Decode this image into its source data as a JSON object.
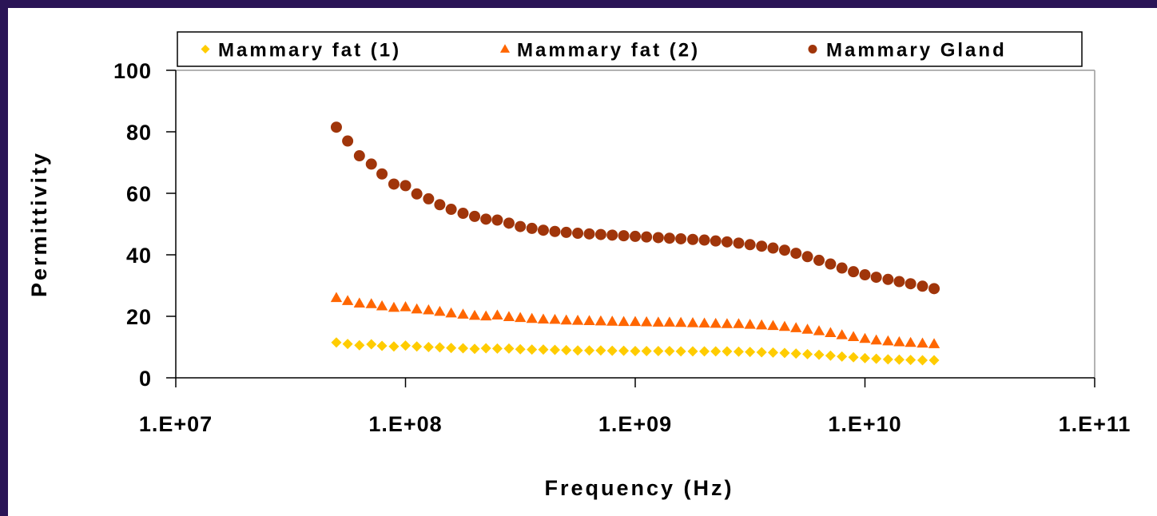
{
  "chart_data": {
    "type": "scatter",
    "xlabel": "Frequency (Hz)",
    "ylabel": "Permittivity",
    "x_scale": "log",
    "xlim": [
      10000000,
      100000000000
    ],
    "ylim": [
      0,
      100
    ],
    "x_ticks": [
      10000000,
      100000000,
      1000000000,
      10000000000,
      100000000000
    ],
    "x_tick_labels": [
      "1.E+07",
      "1.E+08",
      "1.E+09",
      "1.E+10",
      "1.E+11"
    ],
    "y_ticks": [
      0,
      20,
      40,
      60,
      80,
      100
    ],
    "y_tick_labels": [
      "0",
      "20",
      "40",
      "60",
      "80",
      "100"
    ],
    "grid": false,
    "legend": "top",
    "series": [
      {
        "name": "Mammary fat (1)",
        "marker": "diamond",
        "color": "#ffcc00",
        "x": [
          50000000.0,
          56000000.0,
          63000000.0,
          71000000.0,
          79000000.0,
          89000000.0,
          100000000.0,
          112000000.0,
          126000000.0,
          141000000.0,
          158000000.0,
          178000000.0,
          200000000.0,
          224000000.0,
          251000000.0,
          282000000.0,
          316000000.0,
          355000000.0,
          398000000.0,
          447000000.0,
          501000000.0,
          562000000.0,
          631000000.0,
          708000000.0,
          794000000.0,
          891000000.0,
          1000000000.0,
          1120000000.0,
          1260000000.0,
          1410000000.0,
          1580000000.0,
          1780000000.0,
          2000000000.0,
          2240000000.0,
          2510000000.0,
          2820000000.0,
          3160000000.0,
          3550000000.0,
          3980000000.0,
          4470000000.0,
          5010000000.0,
          5620000000.0,
          6310000000.0,
          7080000000.0,
          7940000000.0,
          8910000000.0,
          10000000000.0,
          11200000000.0,
          12600000000.0,
          14100000000.0,
          15800000000.0,
          17800000000.0,
          20000000000.0
        ],
        "y": [
          11.5,
          11.0,
          10.6,
          10.9,
          10.4,
          10.2,
          10.5,
          10.2,
          10.0,
          9.9,
          9.7,
          9.6,
          9.4,
          9.6,
          9.5,
          9.5,
          9.3,
          9.2,
          9.2,
          9.1,
          9.0,
          8.9,
          8.9,
          8.9,
          8.8,
          8.8,
          8.7,
          8.7,
          8.7,
          8.7,
          8.6,
          8.6,
          8.6,
          8.6,
          8.6,
          8.5,
          8.4,
          8.3,
          8.2,
          8.1,
          7.9,
          7.7,
          7.5,
          7.2,
          6.9,
          6.7,
          6.4,
          6.2,
          6.0,
          5.9,
          5.8,
          5.7,
          5.7
        ]
      },
      {
        "name": "Mammary fat (2)",
        "marker": "triangle",
        "color": "#ff6600",
        "x": [
          50000000.0,
          56000000.0,
          63000000.0,
          71000000.0,
          79000000.0,
          89000000.0,
          100000000.0,
          112000000.0,
          126000000.0,
          141000000.0,
          158000000.0,
          178000000.0,
          200000000.0,
          224000000.0,
          251000000.0,
          282000000.0,
          316000000.0,
          355000000.0,
          398000000.0,
          447000000.0,
          501000000.0,
          562000000.0,
          631000000.0,
          708000000.0,
          794000000.0,
          891000000.0,
          1000000000.0,
          1120000000.0,
          1260000000.0,
          1410000000.0,
          1580000000.0,
          1780000000.0,
          2000000000.0,
          2240000000.0,
          2510000000.0,
          2820000000.0,
          3160000000.0,
          3550000000.0,
          3980000000.0,
          4470000000.0,
          5010000000.0,
          5620000000.0,
          6310000000.0,
          7080000000.0,
          7940000000.0,
          8910000000.0,
          10000000000.0,
          11200000000.0,
          12600000000.0,
          14100000000.0,
          15800000000.0,
          17800000000.0,
          20000000000.0
        ],
        "y": [
          26.0,
          25.0,
          24.2,
          24.0,
          23.3,
          22.8,
          23.0,
          22.3,
          22.0,
          21.5,
          21.0,
          20.6,
          20.2,
          20.0,
          20.3,
          19.8,
          19.5,
          19.2,
          19.0,
          18.9,
          18.7,
          18.6,
          18.5,
          18.4,
          18.3,
          18.2,
          18.2,
          18.1,
          18.0,
          18.0,
          17.9,
          17.8,
          17.7,
          17.6,
          17.5,
          17.5,
          17.3,
          17.1,
          16.9,
          16.6,
          16.2,
          15.7,
          15.2,
          14.6,
          13.9,
          13.3,
          12.7,
          12.2,
          11.9,
          11.6,
          11.4,
          11.2,
          11.0
        ]
      },
      {
        "name": "Mammary Gland",
        "marker": "circle",
        "color": "#a0350a",
        "x": [
          50000000.0,
          56000000.0,
          63000000.0,
          71000000.0,
          79000000.0,
          89000000.0,
          100000000.0,
          112000000.0,
          126000000.0,
          141000000.0,
          158000000.0,
          178000000.0,
          200000000.0,
          224000000.0,
          251000000.0,
          282000000.0,
          316000000.0,
          355000000.0,
          398000000.0,
          447000000.0,
          501000000.0,
          562000000.0,
          631000000.0,
          708000000.0,
          794000000.0,
          891000000.0,
          1000000000.0,
          1120000000.0,
          1260000000.0,
          1410000000.0,
          1580000000.0,
          1780000000.0,
          2000000000.0,
          2240000000.0,
          2510000000.0,
          2820000000.0,
          3160000000.0,
          3550000000.0,
          3980000000.0,
          4470000000.0,
          5010000000.0,
          5620000000.0,
          6310000000.0,
          7080000000.0,
          7940000000.0,
          8910000000.0,
          10000000000.0,
          11200000000.0,
          12600000000.0,
          14100000000.0,
          15800000000.0,
          17800000000.0,
          20000000000.0
        ],
        "y": [
          81.5,
          77.0,
          72.2,
          69.5,
          66.3,
          63.0,
          62.5,
          59.8,
          58.2,
          56.3,
          54.8,
          53.5,
          52.5,
          51.6,
          51.3,
          50.3,
          49.2,
          48.6,
          48.0,
          47.6,
          47.3,
          47.0,
          46.8,
          46.6,
          46.4,
          46.2,
          46.0,
          45.8,
          45.6,
          45.4,
          45.2,
          45.0,
          44.8,
          44.5,
          44.2,
          43.8,
          43.3,
          42.8,
          42.2,
          41.5,
          40.5,
          39.4,
          38.2,
          37.0,
          35.7,
          34.5,
          33.5,
          32.7,
          32.0,
          31.3,
          30.6,
          29.8,
          29.0
        ]
      }
    ]
  }
}
